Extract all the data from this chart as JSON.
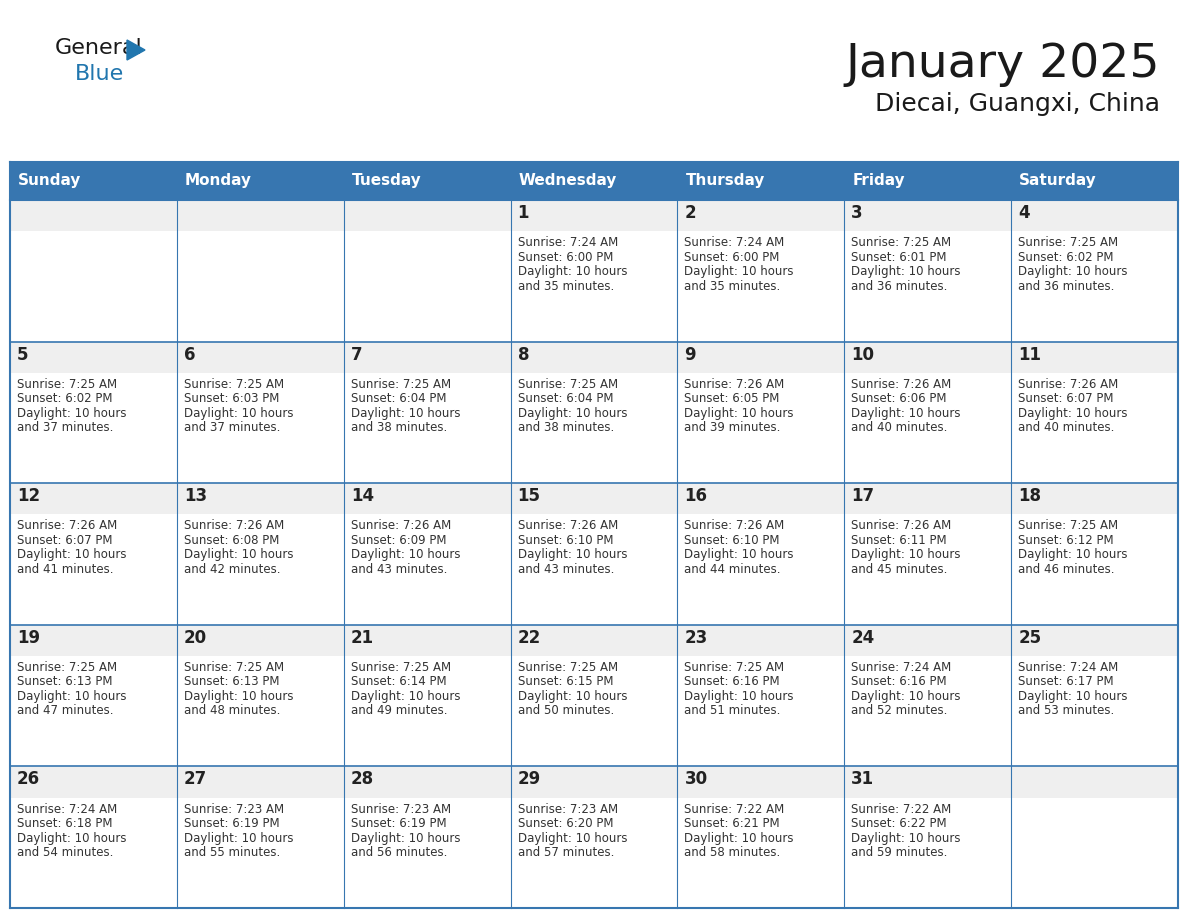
{
  "title": "January 2025",
  "subtitle": "Diecai, Guangxi, China",
  "days_of_week": [
    "Sunday",
    "Monday",
    "Tuesday",
    "Wednesday",
    "Thursday",
    "Friday",
    "Saturday"
  ],
  "header_bg": "#3776B0",
  "header_text": "#FFFFFF",
  "cell_bg_light": "#EFEFEF",
  "cell_bg_white": "#FFFFFF",
  "border_color": "#3776B0",
  "title_color": "#1a1a1a",
  "day_num_color": "#222222",
  "info_color": "#333333",
  "calendar_data": [
    [
      {
        "day": null
      },
      {
        "day": null
      },
      {
        "day": null
      },
      {
        "day": 1,
        "sunrise": "7:24 AM",
        "sunset": "6:00 PM",
        "daylight_suffix": "35 minutes."
      },
      {
        "day": 2,
        "sunrise": "7:24 AM",
        "sunset": "6:00 PM",
        "daylight_suffix": "35 minutes."
      },
      {
        "day": 3,
        "sunrise": "7:25 AM",
        "sunset": "6:01 PM",
        "daylight_suffix": "36 minutes."
      },
      {
        "day": 4,
        "sunrise": "7:25 AM",
        "sunset": "6:02 PM",
        "daylight_suffix": "36 minutes."
      }
    ],
    [
      {
        "day": 5,
        "sunrise": "7:25 AM",
        "sunset": "6:02 PM",
        "daylight_suffix": "37 minutes."
      },
      {
        "day": 6,
        "sunrise": "7:25 AM",
        "sunset": "6:03 PM",
        "daylight_suffix": "37 minutes."
      },
      {
        "day": 7,
        "sunrise": "7:25 AM",
        "sunset": "6:04 PM",
        "daylight_suffix": "38 minutes."
      },
      {
        "day": 8,
        "sunrise": "7:25 AM",
        "sunset": "6:04 PM",
        "daylight_suffix": "38 minutes."
      },
      {
        "day": 9,
        "sunrise": "7:26 AM",
        "sunset": "6:05 PM",
        "daylight_suffix": "39 minutes."
      },
      {
        "day": 10,
        "sunrise": "7:26 AM",
        "sunset": "6:06 PM",
        "daylight_suffix": "40 minutes."
      },
      {
        "day": 11,
        "sunrise": "7:26 AM",
        "sunset": "6:07 PM",
        "daylight_suffix": "40 minutes."
      }
    ],
    [
      {
        "day": 12,
        "sunrise": "7:26 AM",
        "sunset": "6:07 PM",
        "daylight_suffix": "41 minutes."
      },
      {
        "day": 13,
        "sunrise": "7:26 AM",
        "sunset": "6:08 PM",
        "daylight_suffix": "42 minutes."
      },
      {
        "day": 14,
        "sunrise": "7:26 AM",
        "sunset": "6:09 PM",
        "daylight_suffix": "43 minutes."
      },
      {
        "day": 15,
        "sunrise": "7:26 AM",
        "sunset": "6:10 PM",
        "daylight_suffix": "43 minutes."
      },
      {
        "day": 16,
        "sunrise": "7:26 AM",
        "sunset": "6:10 PM",
        "daylight_suffix": "44 minutes."
      },
      {
        "day": 17,
        "sunrise": "7:26 AM",
        "sunset": "6:11 PM",
        "daylight_suffix": "45 minutes."
      },
      {
        "day": 18,
        "sunrise": "7:25 AM",
        "sunset": "6:12 PM",
        "daylight_suffix": "46 minutes."
      }
    ],
    [
      {
        "day": 19,
        "sunrise": "7:25 AM",
        "sunset": "6:13 PM",
        "daylight_suffix": "47 minutes."
      },
      {
        "day": 20,
        "sunrise": "7:25 AM",
        "sunset": "6:13 PM",
        "daylight_suffix": "48 minutes."
      },
      {
        "day": 21,
        "sunrise": "7:25 AM",
        "sunset": "6:14 PM",
        "daylight_suffix": "49 minutes."
      },
      {
        "day": 22,
        "sunrise": "7:25 AM",
        "sunset": "6:15 PM",
        "daylight_suffix": "50 minutes."
      },
      {
        "day": 23,
        "sunrise": "7:25 AM",
        "sunset": "6:16 PM",
        "daylight_suffix": "51 minutes."
      },
      {
        "day": 24,
        "sunrise": "7:24 AM",
        "sunset": "6:16 PM",
        "daylight_suffix": "52 minutes."
      },
      {
        "day": 25,
        "sunrise": "7:24 AM",
        "sunset": "6:17 PM",
        "daylight_suffix": "53 minutes."
      }
    ],
    [
      {
        "day": 26,
        "sunrise": "7:24 AM",
        "sunset": "6:18 PM",
        "daylight_suffix": "54 minutes."
      },
      {
        "day": 27,
        "sunrise": "7:23 AM",
        "sunset": "6:19 PM",
        "daylight_suffix": "55 minutes."
      },
      {
        "day": 28,
        "sunrise": "7:23 AM",
        "sunset": "6:19 PM",
        "daylight_suffix": "56 minutes."
      },
      {
        "day": 29,
        "sunrise": "7:23 AM",
        "sunset": "6:20 PM",
        "daylight_suffix": "57 minutes."
      },
      {
        "day": 30,
        "sunrise": "7:22 AM",
        "sunset": "6:21 PM",
        "daylight_suffix": "58 minutes."
      },
      {
        "day": 31,
        "sunrise": "7:22 AM",
        "sunset": "6:22 PM",
        "daylight_suffix": "59 minutes."
      },
      {
        "day": null
      }
    ]
  ]
}
